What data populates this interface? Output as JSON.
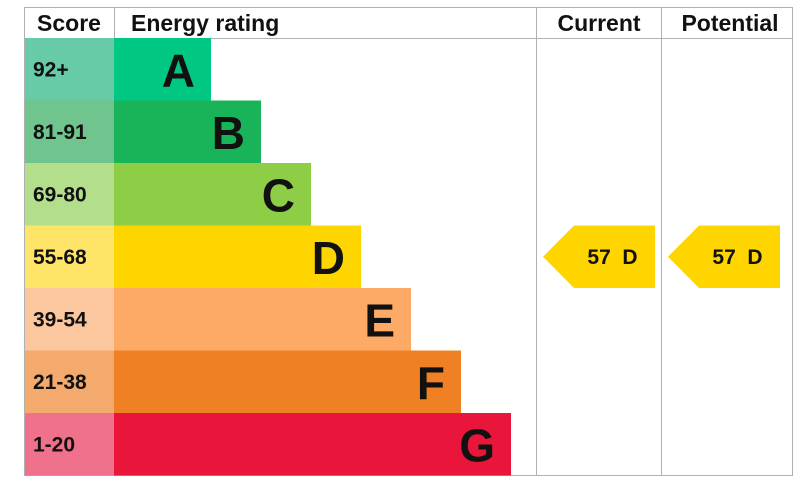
{
  "headers": {
    "score": "Score",
    "rating": "Energy rating",
    "current": "Current",
    "potential": "Potential"
  },
  "chart_data": {
    "type": "bar",
    "categories": [
      "A",
      "B",
      "C",
      "D",
      "E",
      "F",
      "G"
    ],
    "score_ranges": [
      "92+",
      "81-91",
      "69-80",
      "55-68",
      "39-54",
      "21-38",
      "1-20"
    ],
    "band_colors": [
      "#00c781",
      "#19b459",
      "#8dce46",
      "#ffd500",
      "#fcaa65",
      "#ef8023",
      "#e9153b"
    ],
    "score_colors": [
      "#67cba8",
      "#70c48d",
      "#b3de8b",
      "#ffe567",
      "#fcc79e",
      "#f4a96d",
      "#f0718b"
    ],
    "current": {
      "score": 57,
      "band": "D",
      "label": "57 D"
    },
    "potential": {
      "score": 57,
      "band": "D",
      "label": "57 D"
    },
    "marker_color": "#ffd500"
  }
}
